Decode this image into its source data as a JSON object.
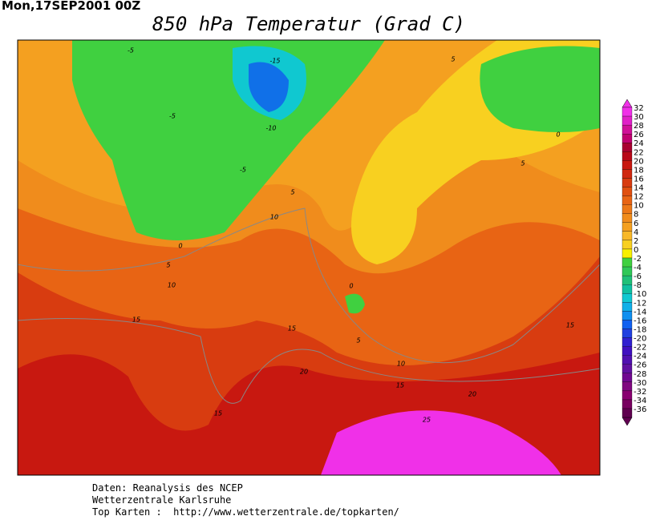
{
  "header": {
    "date": "Mon,17SEP2001 00Z",
    "title": "850 hPa Temperatur (Grad C)"
  },
  "legend": {
    "levels": [
      32,
      30,
      28,
      26,
      24,
      22,
      20,
      18,
      16,
      14,
      12,
      10,
      8,
      6,
      4,
      2,
      0,
      -2,
      -4,
      -6,
      -8,
      -10,
      -12,
      -14,
      -16,
      -18,
      -20,
      -22,
      -24,
      -26,
      -28,
      -30,
      -32,
      -34,
      -36
    ],
    "colors": [
      "#f030e8",
      "#e020c8",
      "#d01098",
      "#c00070",
      "#a80030",
      "#b80818",
      "#c81810",
      "#d02810",
      "#d83c10",
      "#e05010",
      "#e86414",
      "#ec7818",
      "#f08c1c",
      "#f4a020",
      "#f8b828",
      "#f8d020",
      "#f8f000",
      "#40d040",
      "#30c858",
      "#20c078",
      "#10c0a0",
      "#10c8d0",
      "#10b0e8",
      "#1090f0",
      "#1060f0",
      "#2040e0",
      "#3020d0",
      "#4010c0",
      "#5010b0",
      "#6010a0",
      "#700890",
      "#800880",
      "#880070",
      "#780060",
      "#600050"
    ]
  },
  "contours": [
    "-5",
    "-15",
    "-5",
    "-10",
    "-5",
    "5",
    "5",
    "0",
    "10",
    "5",
    "0",
    "5",
    "10",
    "15",
    "15",
    "20",
    "15",
    "10",
    "15",
    "20",
    "25",
    "0",
    "5",
    "15"
  ],
  "footer": [
    "Daten: Reanalysis des NCEP",
    "Wetterzentrale Karlsruhe",
    "Top Karten :  http://www.wetterzentrale.de/topkarten/"
  ]
}
